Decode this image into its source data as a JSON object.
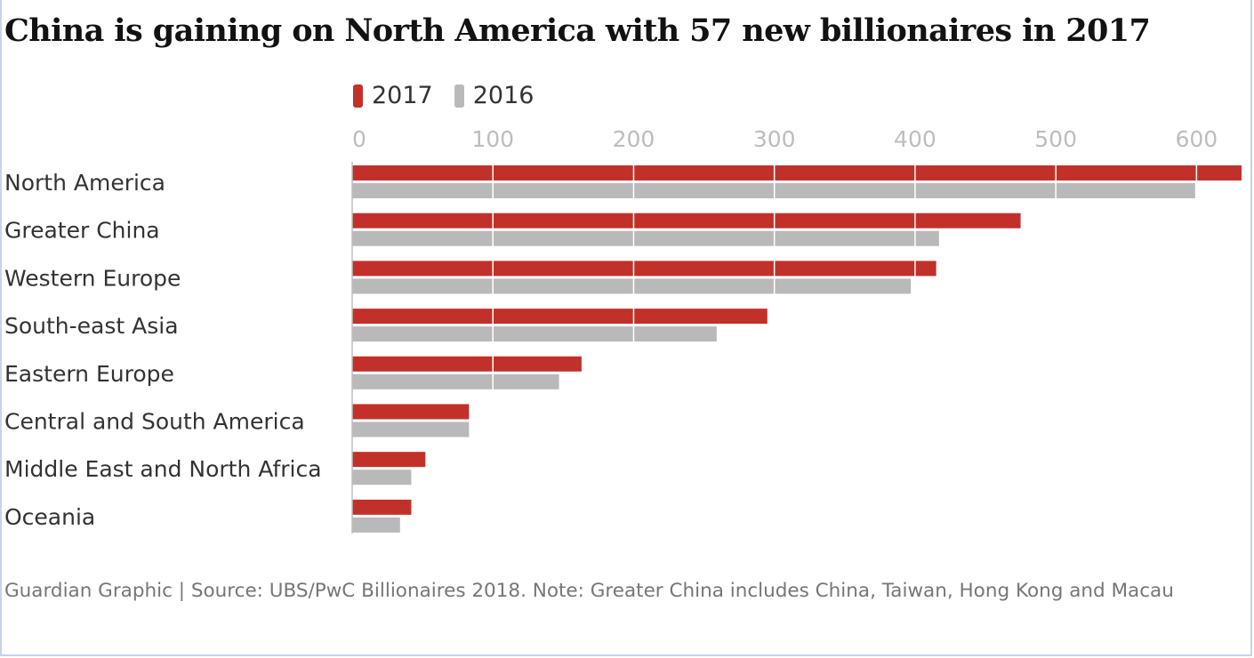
{
  "title": "China is gaining on North America with 57 new billionaires in 2017",
  "footnote": "Guardian Graphic | Source: UBS/PwC Billionaires 2018. Note: Greater China includes China, Taiwan, Hong Kong and Macau",
  "colors": {
    "s2017": "#c1312a",
    "s2016": "#b9b9b9",
    "grid": "#ffffff",
    "axis": "#bdbdbd"
  },
  "chart_data": {
    "type": "bar",
    "orientation": "horizontal",
    "categories": [
      "North America",
      "Greater China",
      "Western Europe",
      "South-east Asia",
      "Eastern Europe",
      "Central and South America",
      "Middle East and North Africa",
      "Oceania"
    ],
    "series": [
      {
        "name": "2017",
        "values": [
          632,
          475,
          415,
          295,
          163,
          83,
          52,
          42
        ]
      },
      {
        "name": "2016",
        "values": [
          599,
          417,
          397,
          259,
          147,
          83,
          42,
          34
        ]
      }
    ],
    "xlim": [
      0,
      632
    ],
    "xticks": [
      0,
      100,
      200,
      300,
      400,
      500,
      600
    ],
    "legend": "top-left",
    "grid": true
  }
}
